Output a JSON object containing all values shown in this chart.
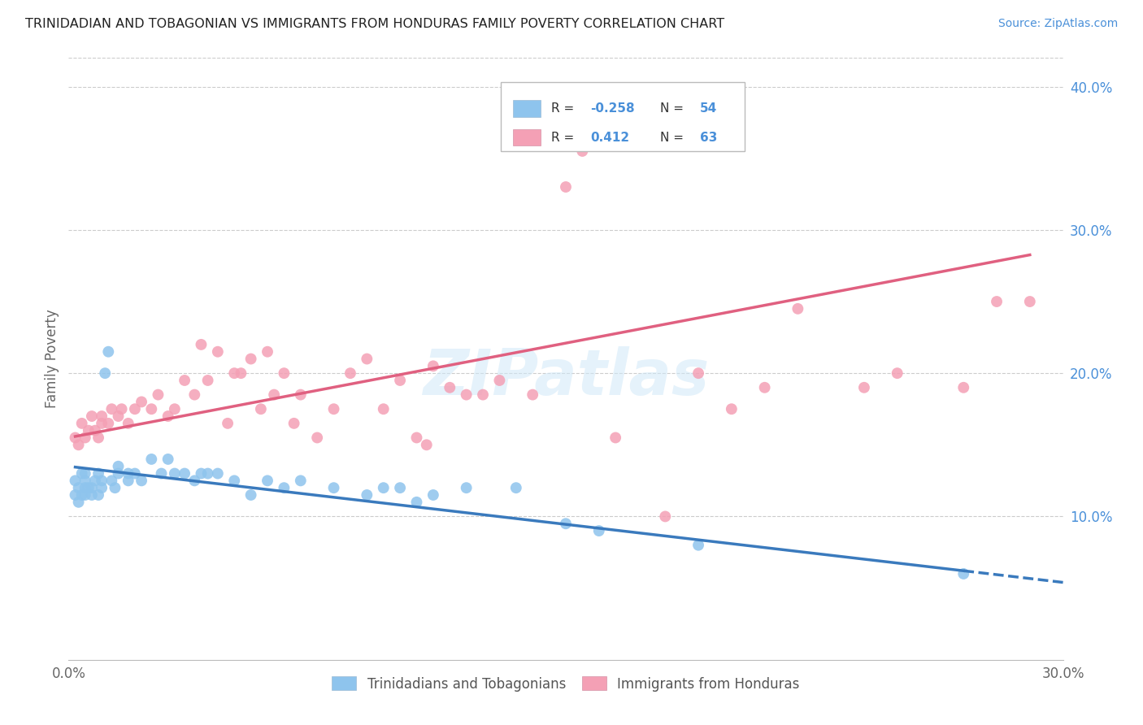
{
  "title": "TRINIDADIAN AND TOBAGONIAN VS IMMIGRANTS FROM HONDURAS FAMILY POVERTY CORRELATION CHART",
  "source": "Source: ZipAtlas.com",
  "ylabel": "Family Poverty",
  "legend_labels": [
    "Trinidadians and Tobagonians",
    "Immigrants from Honduras"
  ],
  "blue_R": -0.258,
  "blue_N": 54,
  "pink_R": 0.412,
  "pink_N": 63,
  "xlim": [
    0.0,
    0.3
  ],
  "ylim": [
    0.0,
    0.42
  ],
  "y_ticks_right": [
    0.1,
    0.2,
    0.3,
    0.4
  ],
  "y_tick_labels_right": [
    "10.0%",
    "20.0%",
    "30.0%",
    "40.0%"
  ],
  "blue_color": "#8EC4ED",
  "pink_color": "#F4A0B5",
  "blue_line_color": "#3A7ABD",
  "pink_line_color": "#E06080",
  "watermark": "ZIPatlas",
  "blue_scatter_x": [
    0.002,
    0.002,
    0.003,
    0.003,
    0.004,
    0.004,
    0.005,
    0.005,
    0.005,
    0.005,
    0.006,
    0.007,
    0.007,
    0.008,
    0.009,
    0.009,
    0.01,
    0.01,
    0.011,
    0.012,
    0.013,
    0.014,
    0.015,
    0.015,
    0.018,
    0.018,
    0.02,
    0.022,
    0.025,
    0.028,
    0.03,
    0.032,
    0.035,
    0.038,
    0.04,
    0.042,
    0.045,
    0.05,
    0.055,
    0.06,
    0.065,
    0.07,
    0.08,
    0.09,
    0.095,
    0.1,
    0.105,
    0.11,
    0.12,
    0.135,
    0.15,
    0.16,
    0.19,
    0.27
  ],
  "blue_scatter_y": [
    0.115,
    0.125,
    0.12,
    0.11,
    0.115,
    0.13,
    0.125,
    0.12,
    0.115,
    0.13,
    0.12,
    0.115,
    0.12,
    0.125,
    0.115,
    0.13,
    0.125,
    0.12,
    0.2,
    0.215,
    0.125,
    0.12,
    0.13,
    0.135,
    0.13,
    0.125,
    0.13,
    0.125,
    0.14,
    0.13,
    0.14,
    0.13,
    0.13,
    0.125,
    0.13,
    0.13,
    0.13,
    0.125,
    0.115,
    0.125,
    0.12,
    0.125,
    0.12,
    0.115,
    0.12,
    0.12,
    0.11,
    0.115,
    0.12,
    0.12,
    0.095,
    0.09,
    0.08,
    0.06
  ],
  "pink_scatter_x": [
    0.002,
    0.003,
    0.004,
    0.005,
    0.006,
    0.007,
    0.008,
    0.009,
    0.01,
    0.01,
    0.012,
    0.013,
    0.015,
    0.016,
    0.018,
    0.02,
    0.022,
    0.025,
    0.027,
    0.03,
    0.032,
    0.035,
    0.038,
    0.04,
    0.042,
    0.045,
    0.048,
    0.05,
    0.052,
    0.055,
    0.058,
    0.06,
    0.062,
    0.065,
    0.068,
    0.07,
    0.075,
    0.08,
    0.085,
    0.09,
    0.095,
    0.1,
    0.105,
    0.108,
    0.11,
    0.115,
    0.12,
    0.125,
    0.13,
    0.14,
    0.15,
    0.155,
    0.165,
    0.18,
    0.19,
    0.2,
    0.21,
    0.22,
    0.24,
    0.25,
    0.27,
    0.28,
    0.29
  ],
  "pink_scatter_y": [
    0.155,
    0.15,
    0.165,
    0.155,
    0.16,
    0.17,
    0.16,
    0.155,
    0.165,
    0.17,
    0.165,
    0.175,
    0.17,
    0.175,
    0.165,
    0.175,
    0.18,
    0.175,
    0.185,
    0.17,
    0.175,
    0.195,
    0.185,
    0.22,
    0.195,
    0.215,
    0.165,
    0.2,
    0.2,
    0.21,
    0.175,
    0.215,
    0.185,
    0.2,
    0.165,
    0.185,
    0.155,
    0.175,
    0.2,
    0.21,
    0.175,
    0.195,
    0.155,
    0.15,
    0.205,
    0.19,
    0.185,
    0.185,
    0.195,
    0.185,
    0.33,
    0.355,
    0.155,
    0.1,
    0.2,
    0.175,
    0.19,
    0.245,
    0.19,
    0.2,
    0.19,
    0.25,
    0.25
  ]
}
